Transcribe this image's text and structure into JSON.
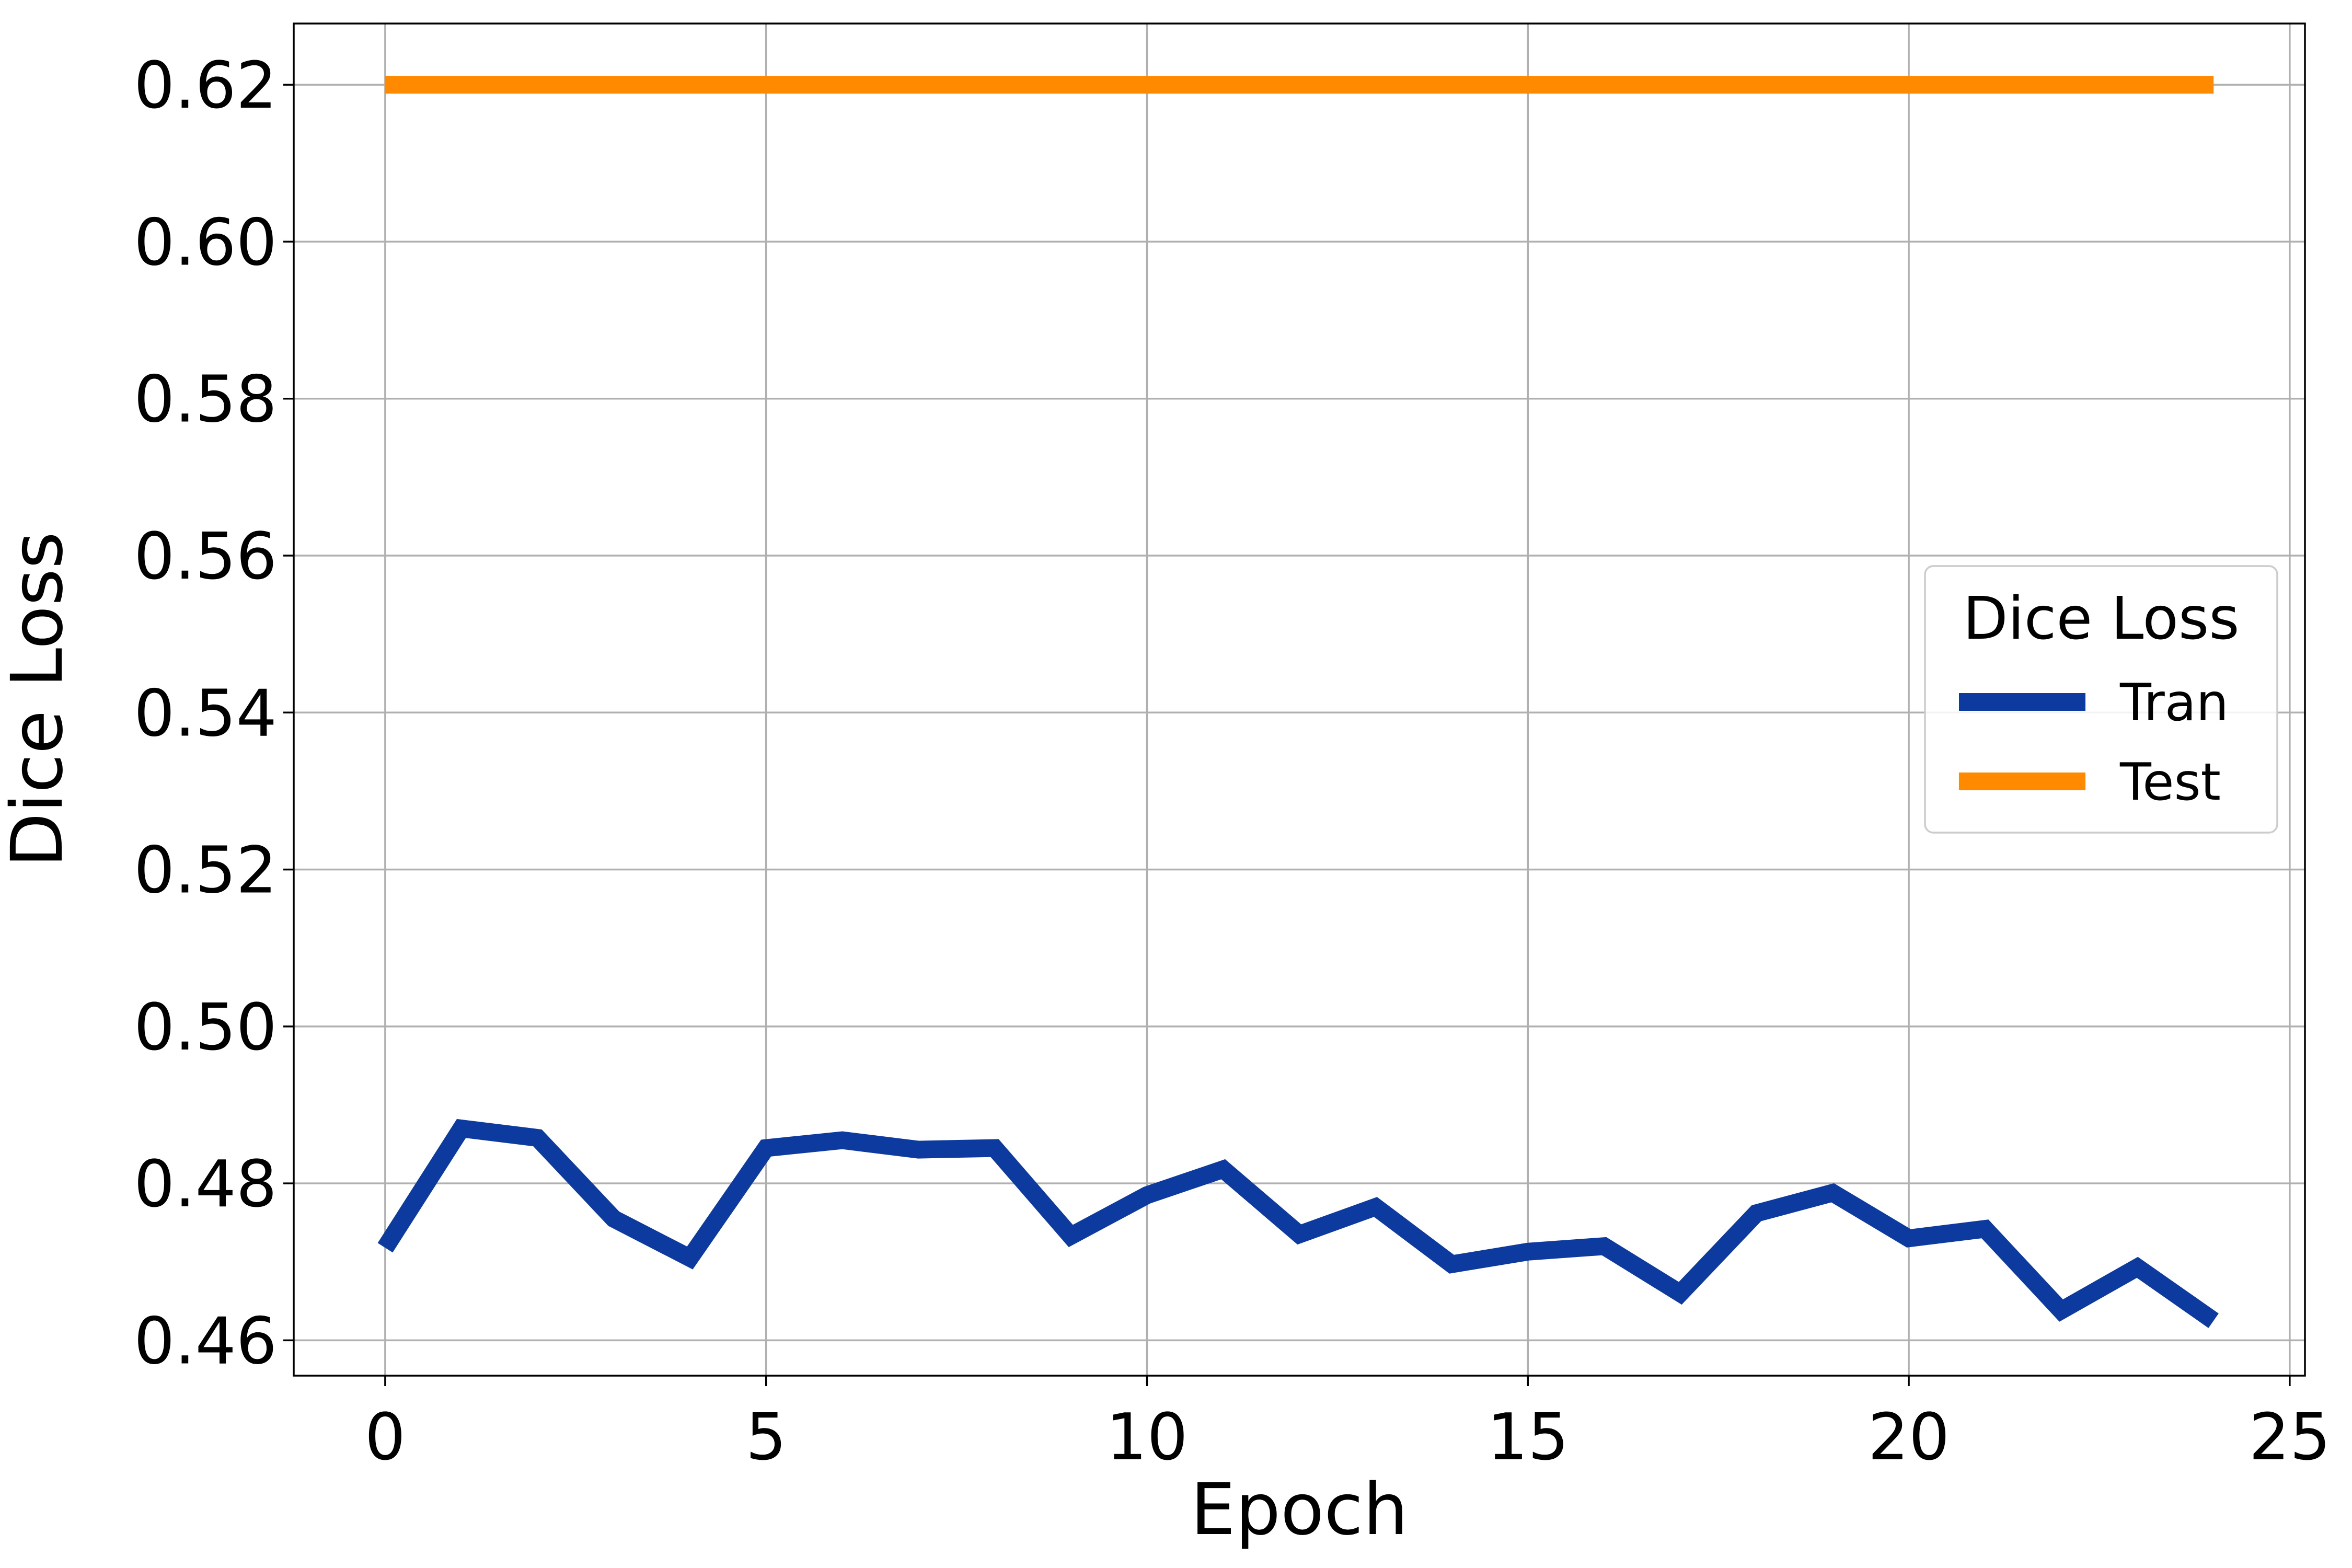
{
  "chart_data": {
    "type": "line",
    "xlabel": "Epoch",
    "ylabel": "Dice Loss",
    "xlim": [
      -1.2,
      25.2
    ],
    "ylim": [
      0.4555,
      0.6278
    ],
    "x_ticks": [
      0,
      5,
      10,
      15,
      20,
      25
    ],
    "x_tick_labels": [
      "0",
      "5",
      "10",
      "15",
      "20",
      "25"
    ],
    "y_ticks": [
      0.46,
      0.48,
      0.5,
      0.52,
      0.54,
      0.56,
      0.58,
      0.6,
      0.62
    ],
    "y_tick_labels": [
      "0.46",
      "0.48",
      "0.50",
      "0.52",
      "0.54",
      "0.56",
      "0.58",
      "0.60",
      "0.62"
    ],
    "grid": true,
    "legend": {
      "title": "Dice Loss",
      "placement": "center-right"
    },
    "x": [
      0,
      1,
      2,
      3,
      4,
      5,
      6,
      7,
      8,
      9,
      10,
      11,
      12,
      13,
      14,
      15,
      16,
      17,
      18,
      19,
      20,
      21,
      22,
      23,
      24
    ],
    "series": [
      {
        "name": "Tran",
        "color": "#0d3a9e",
        "values": [
          0.4718,
          0.487,
          0.4858,
          0.4755,
          0.4705,
          0.4845,
          0.4855,
          0.4843,
          0.4845,
          0.4733,
          0.4785,
          0.4818,
          0.4735,
          0.477,
          0.4697,
          0.4713,
          0.472,
          0.466,
          0.4762,
          0.4788,
          0.473,
          0.4742,
          0.4638,
          0.4693,
          0.4625
        ]
      },
      {
        "name": "Test",
        "color": "#ff8a00",
        "values": [
          0.62,
          0.62,
          0.62,
          0.62,
          0.62,
          0.62,
          0.62,
          0.62,
          0.62,
          0.62,
          0.62,
          0.62,
          0.62,
          0.62,
          0.62,
          0.62,
          0.62,
          0.62,
          0.62,
          0.62,
          0.62,
          0.62,
          0.62,
          0.62,
          0.62
        ]
      }
    ]
  }
}
